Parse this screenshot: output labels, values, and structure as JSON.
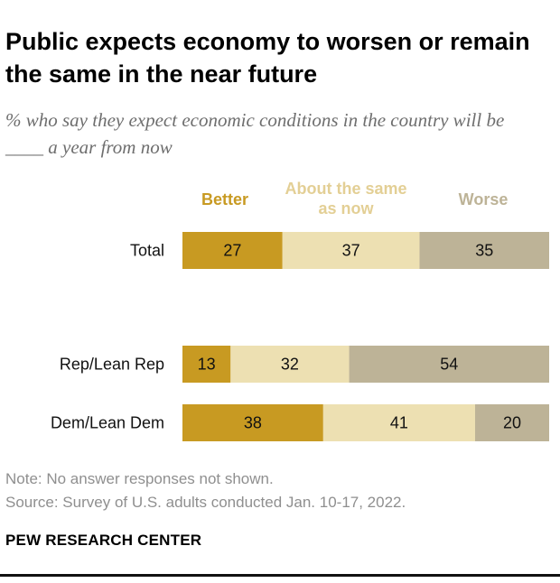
{
  "header": {
    "title": "Public expects economy to worsen or remain the same in the near future",
    "subtitle": "% who say they expect economic conditions in the country will be ____ a year from now"
  },
  "chart_data": {
    "type": "bar",
    "orientation": "horizontal",
    "stacked": true,
    "categories": [
      "Total",
      "Rep/Lean Rep",
      "Dem/Lean Dem"
    ],
    "series": [
      {
        "name": "Better",
        "values": [
          27,
          13,
          38
        ],
        "color": "#c89a22"
      },
      {
        "name": "About the same as now",
        "values": [
          37,
          32,
          41
        ],
        "color": "#ede0b2"
      },
      {
        "name": "Worse",
        "values": [
          35,
          54,
          20
        ],
        "color": "#bdb397"
      }
    ],
    "legend_labels": {
      "better": "Better",
      "same": "About the same as now",
      "worse": "Worse"
    },
    "xlim": [
      0,
      100
    ]
  },
  "footer": {
    "note": "Note: No answer responses not shown.",
    "source": "Source: Survey of U.S. adults conducted Jan. 10-17, 2022.",
    "brand": "PEW RESEARCH CENTER"
  }
}
